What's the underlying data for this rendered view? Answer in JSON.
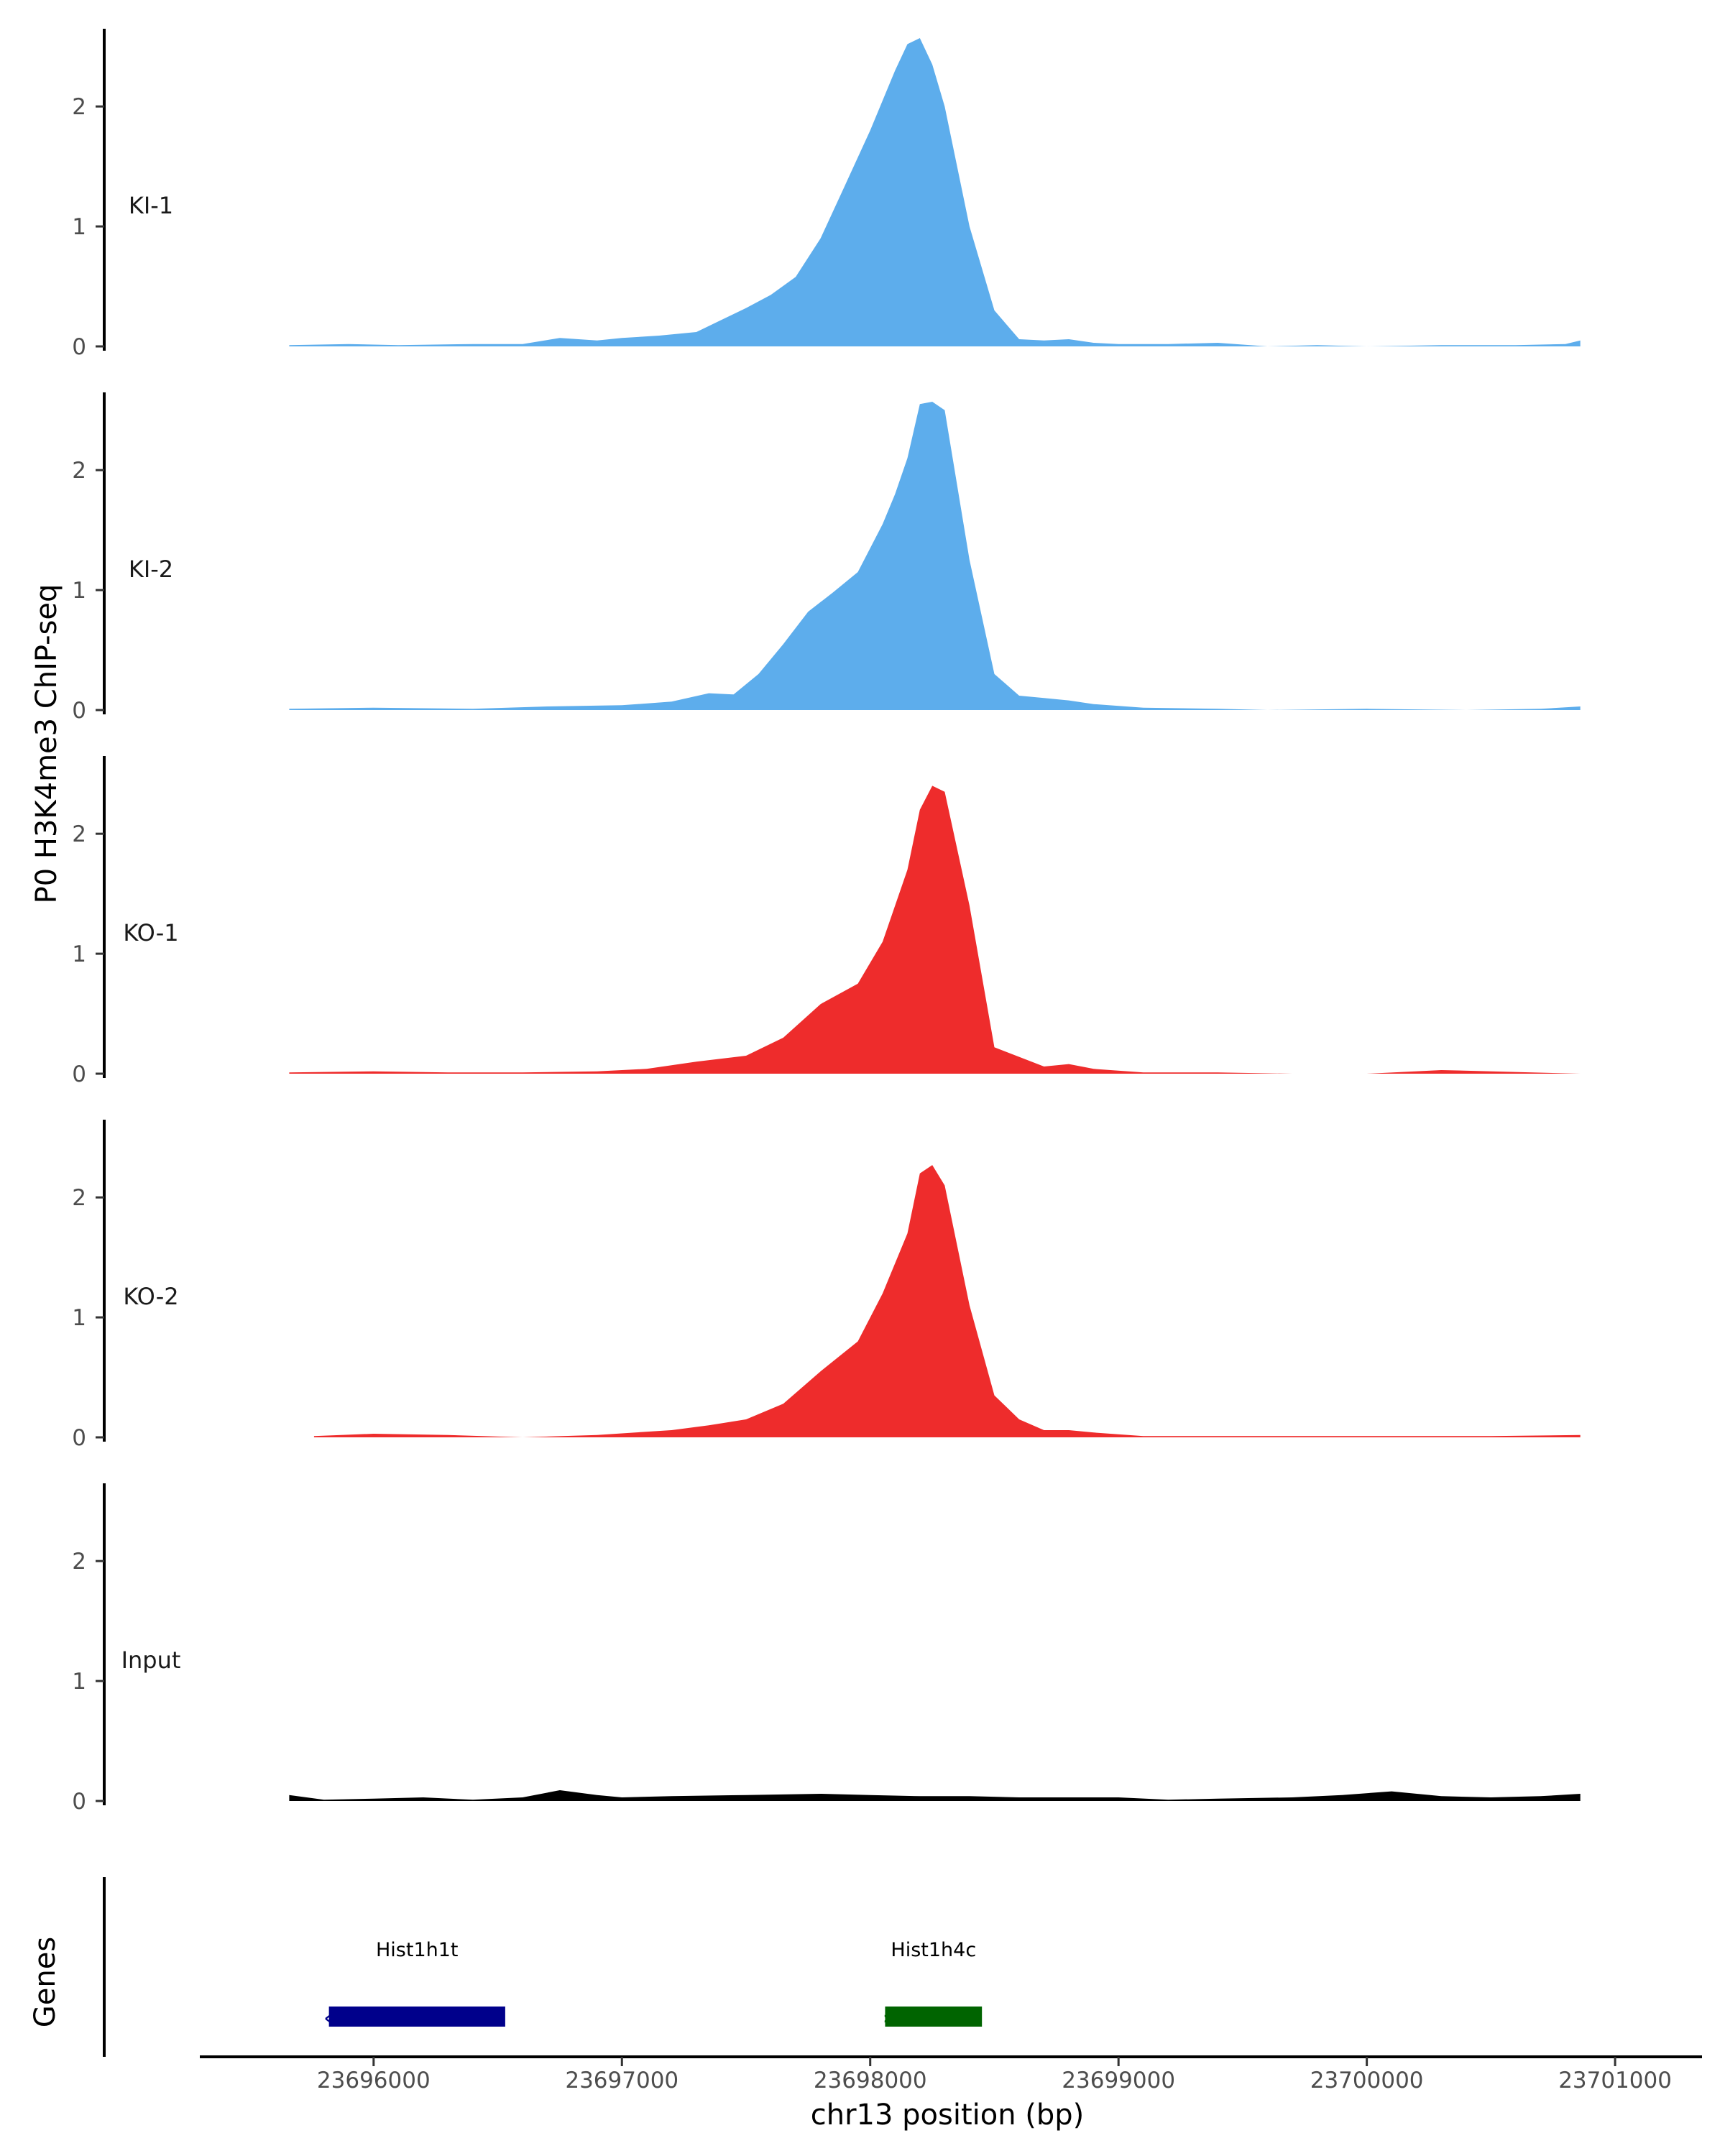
{
  "chart_data": {
    "type": "area",
    "title": "",
    "ylabel": "P0 H3K4me3 ChIP-seq",
    "xlabel": "chr13 position (bp)",
    "xlim": [
      23695300,
      23701350
    ],
    "ylim": [
      0,
      2.6
    ],
    "x_ticks": [
      23696000,
      23697000,
      23698000,
      23699000,
      23700000,
      23701000
    ],
    "x_tick_labels": [
      "23696000",
      "23697000",
      "23698000",
      "23699000",
      "23700000",
      "23701000"
    ],
    "y_ticks": [
      0,
      1,
      2
    ],
    "y_tick_labels": [
      "0",
      "1",
      "2"
    ],
    "tracks": [
      {
        "name": "KI-1",
        "color": "#5DADEC",
        "x": [
          23695660,
          23695900,
          23696100,
          23696400,
          23696600,
          23696750,
          23696900,
          23697000,
          23697150,
          23697300,
          23697400,
          23697500,
          23697600,
          23697700,
          23697800,
          23697900,
          23698000,
          23698100,
          23698150,
          23698200,
          23698250,
          23698300,
          23698400,
          23698500,
          23698600,
          23698700,
          23698800,
          23698900,
          23699000,
          23699200,
          23699400,
          23699600,
          23699800,
          23700000,
          23700300,
          23700600,
          23700800,
          23700860
        ],
        "y": [
          0.01,
          0.02,
          0.01,
          0.02,
          0.02,
          0.07,
          0.05,
          0.07,
          0.09,
          0.12,
          0.22,
          0.32,
          0.43,
          0.58,
          0.9,
          1.35,
          1.8,
          2.3,
          2.52,
          2.57,
          2.35,
          2.0,
          1.0,
          0.3,
          0.06,
          0.05,
          0.06,
          0.03,
          0.02,
          0.02,
          0.03,
          0.0,
          0.01,
          0.0,
          0.01,
          0.01,
          0.02,
          0.05
        ]
      },
      {
        "name": "KI-2",
        "color": "#5DADEC",
        "x": [
          23695660,
          23696000,
          23696400,
          23696700,
          23697000,
          23697200,
          23697350,
          23697450,
          23697550,
          23697650,
          23697750,
          23697850,
          23697950,
          23698050,
          23698100,
          23698150,
          23698200,
          23698250,
          23698300,
          23698400,
          23698500,
          23698600,
          23698700,
          23698800,
          23698900,
          23699100,
          23699400,
          23699600,
          23700000,
          23700400,
          23700700,
          23700860
        ],
        "y": [
          0.01,
          0.02,
          0.01,
          0.03,
          0.04,
          0.07,
          0.14,
          0.13,
          0.3,
          0.55,
          0.82,
          0.98,
          1.15,
          1.55,
          1.8,
          2.1,
          2.55,
          2.57,
          2.5,
          1.25,
          0.3,
          0.12,
          0.1,
          0.08,
          0.05,
          0.02,
          0.01,
          0.0,
          0.01,
          0.0,
          0.01,
          0.03
        ]
      },
      {
        "name": "KO-1",
        "color": "#EE2C2C",
        "x": [
          23695660,
          23696000,
          23696300,
          23696600,
          23696900,
          23697100,
          23697300,
          23697500,
          23697650,
          23697800,
          23697950,
          23698050,
          23698150,
          23698200,
          23698250,
          23698300,
          23698400,
          23698500,
          23698600,
          23698700,
          23698800,
          23698900,
          23699100,
          23699400,
          23699700,
          23700000,
          23700300,
          23700500,
          23700860
        ],
        "y": [
          0.01,
          0.02,
          0.01,
          0.01,
          0.02,
          0.04,
          0.1,
          0.15,
          0.3,
          0.58,
          0.75,
          1.1,
          1.7,
          2.2,
          2.4,
          2.35,
          1.4,
          0.22,
          0.14,
          0.06,
          0.08,
          0.04,
          0.01,
          0.01,
          0.0,
          0.0,
          0.03,
          0.02,
          0.0
        ]
      },
      {
        "name": "KO-2",
        "color": "#EE2C2C",
        "x": [
          23695760,
          23696000,
          23696300,
          23696600,
          23696900,
          23697200,
          23697350,
          23697500,
          23697650,
          23697800,
          23697950,
          23698050,
          23698150,
          23698200,
          23698250,
          23698300,
          23698400,
          23698500,
          23698600,
          23698700,
          23698800,
          23698900,
          23699100,
          23699500,
          23700000,
          23700500,
          23700860
        ],
        "y": [
          0.01,
          0.03,
          0.02,
          0.0,
          0.02,
          0.06,
          0.1,
          0.15,
          0.28,
          0.55,
          0.8,
          1.2,
          1.7,
          2.2,
          2.27,
          2.1,
          1.1,
          0.35,
          0.15,
          0.06,
          0.06,
          0.04,
          0.01,
          0.01,
          0.01,
          0.01,
          0.02
        ]
      },
      {
        "name": "Input",
        "color": "#000000",
        "x": [
          23695660,
          23695800,
          23696000,
          23696200,
          23696400,
          23696600,
          23696750,
          23696900,
          23697000,
          23697200,
          23697500,
          23697800,
          23698000,
          23698200,
          23698400,
          23698600,
          23698800,
          23699000,
          23699200,
          23699400,
          23699700,
          23699900,
          23700100,
          23700300,
          23700500,
          23700700,
          23700860
        ],
        "y": [
          0.05,
          0.01,
          0.02,
          0.03,
          0.01,
          0.03,
          0.09,
          0.05,
          0.03,
          0.04,
          0.05,
          0.06,
          0.05,
          0.04,
          0.04,
          0.03,
          0.03,
          0.03,
          0.01,
          0.02,
          0.03,
          0.05,
          0.08,
          0.04,
          0.03,
          0.04,
          0.06
        ]
      }
    ],
    "genes_track": {
      "label": "Genes",
      "genes": [
        {
          "name": "Hist1h1t",
          "start": 23695820,
          "end": 23696530,
          "strand": "-",
          "color": "#00008B"
        },
        {
          "name": "Hist1h4c",
          "start": 23698060,
          "end": 23698450,
          "strand": "+",
          "color": "#006400"
        }
      ]
    }
  }
}
